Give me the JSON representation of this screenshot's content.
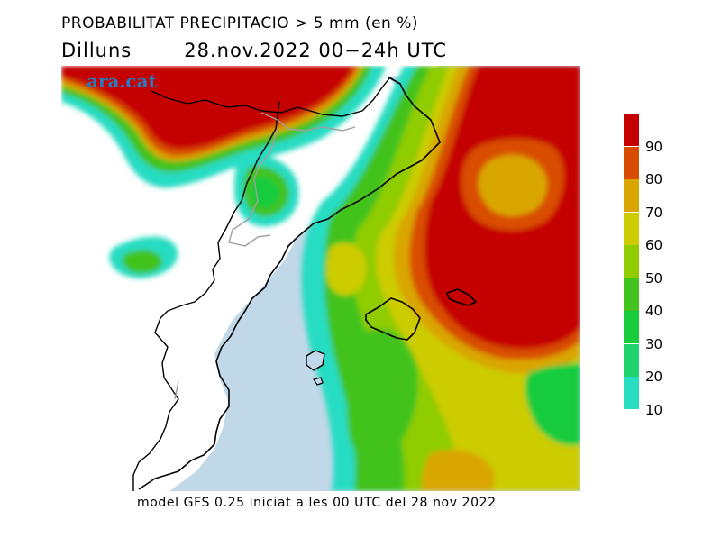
{
  "header": {
    "title": "PROBABILITAT PRECIPITACIO > 5 mm (en %)",
    "day": "Dilluns",
    "period": "28.nov.2022 00−24h UTC"
  },
  "map": {
    "watermark": "ara.cat",
    "colors": {
      "sea": "#c1d8e8",
      "land": "#ffffff",
      "coast": "#000000",
      "border": "#a0a0a0"
    }
  },
  "legend": {
    "levels": [
      {
        "label": "90",
        "color": "#c40000"
      },
      {
        "label": "80",
        "color": "#d84e00"
      },
      {
        "label": "70",
        "color": "#d9a600"
      },
      {
        "label": "60",
        "color": "#cccc00"
      },
      {
        "label": "50",
        "color": "#8fcc00"
      },
      {
        "label": "40",
        "color": "#42c31e"
      },
      {
        "label": "30",
        "color": "#19cc3c"
      },
      {
        "label": "20",
        "color": "#1ed26c"
      },
      {
        "label": "10",
        "color": "#28dcc2"
      }
    ],
    "min_label": "10"
  },
  "footer": {
    "text": "model GFS 0.25 iniciat a les 00 UTC del 28 nov 2022"
  }
}
